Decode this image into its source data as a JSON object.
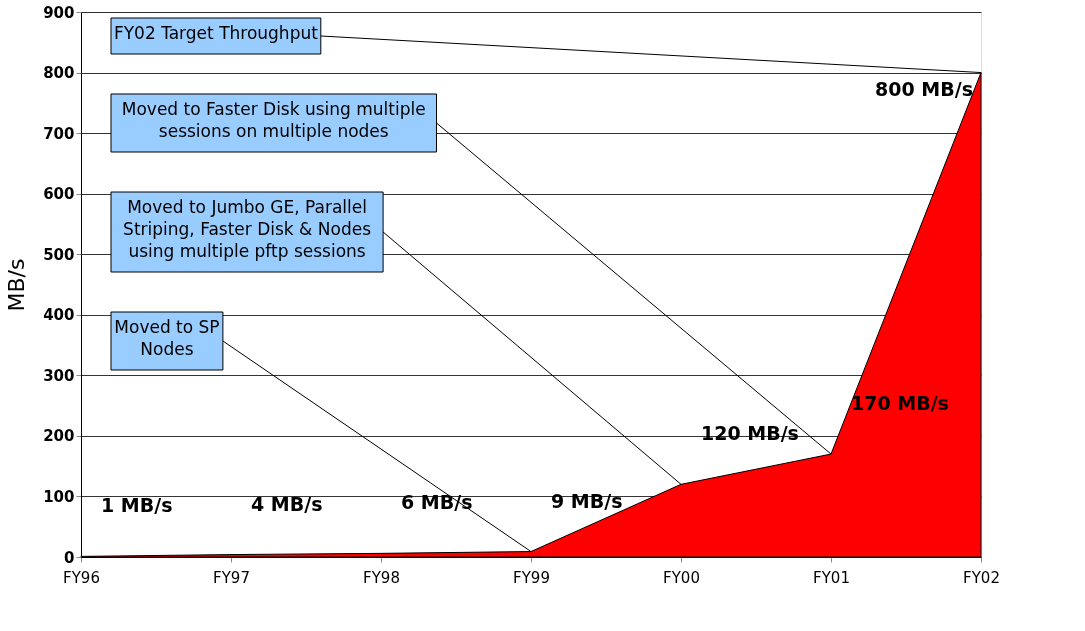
{
  "chart_data": {
    "type": "area",
    "ylabel": "MB/s",
    "categories": [
      "FY96",
      "FY97",
      "FY98",
      "FY99",
      "FY00",
      "FY01",
      "FY02"
    ],
    "series": [
      {
        "color": "#ff0000",
        "values": [
          1,
          4,
          6,
          9,
          120,
          170,
          800
        ]
      }
    ],
    "value_labels": [
      "1 MB/s",
      "4 MB/s",
      "6 MB/s",
      "9 MB/s",
      "120 MB/s",
      "170 MB/s",
      "800 MB/s"
    ],
    "ylim": [
      0,
      900
    ],
    "yticks": [
      0,
      100,
      200,
      300,
      400,
      500,
      600,
      700,
      800,
      900
    ],
    "grid": "y",
    "annotations": [
      {
        "text": "FY02 Target Throughput",
        "x": "FY02",
        "y": 800
      },
      {
        "text": "Moved to Faster Disk using multiple\nsessions on multiple nodes",
        "x": "FY01",
        "y": 170
      },
      {
        "text": "Moved to Jumbo GE, Parallel\nStriping, Faster Disk & Nodes\nusing multiple pftp sessions",
        "x": "FY00",
        "y": 120
      },
      {
        "text": "Moved to SP\nNodes",
        "x": "FY99",
        "y": 9
      }
    ]
  }
}
